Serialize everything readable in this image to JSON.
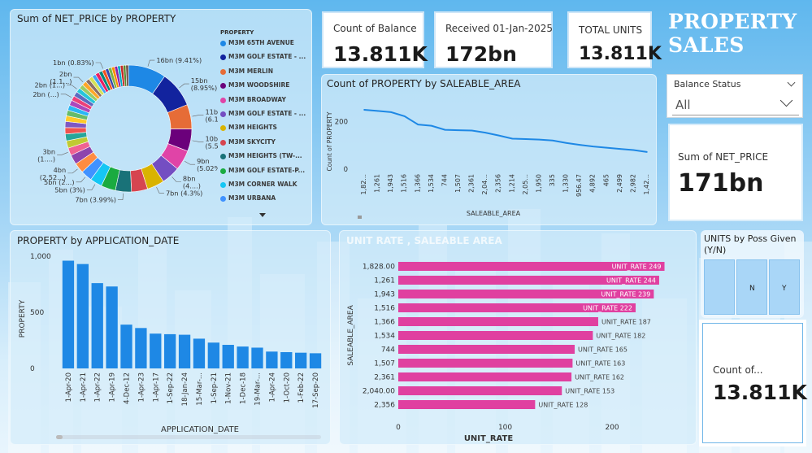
{
  "dashboard_title": "PROPERTY SALES",
  "kpi_cards": [
    {
      "label": "Count of Balance",
      "value": "13.811K"
    },
    {
      "label": "Received 01-Jan-2025",
      "value": "172bn"
    },
    {
      "label": "TOTAL UNITS",
      "value": "13.811K"
    }
  ],
  "net_price_card": {
    "label": "Sum of NET_PRICE",
    "value": "171bn"
  },
  "count_card": {
    "label": "Count of...",
    "value": "13.811K"
  },
  "slicer": {
    "title": "Balance Status",
    "selected": "All"
  },
  "poss_tiles": {
    "title": "UNITS by Poss Given (Y/N)",
    "labels": [
      "N",
      "Y"
    ]
  },
  "colors": {
    "bar_blue": "#1e88e5",
    "bar_pink": "#e040a0",
    "line_blue": "#1e88e5"
  },
  "chart_data": [
    {
      "type": "pie",
      "title": "Sum of NET_PRICE by PROPERTY",
      "legend_title": "PROPERTY",
      "legend": [
        {
          "name": "M3M 65TH AVENUE",
          "color": "#1e88e5"
        },
        {
          "name": "M3M GOLF ESTATE - ...",
          "color": "#12239e"
        },
        {
          "name": "M3M MERLIN",
          "color": "#e66c37"
        },
        {
          "name": "M3M WOODSHIRE",
          "color": "#6b007b"
        },
        {
          "name": "M3M BROADWAY",
          "color": "#e044a7"
        },
        {
          "name": "M3M GOLF ESTATE - ...",
          "color": "#744ec2"
        },
        {
          "name": "M3M HEIGHTS",
          "color": "#d9b300"
        },
        {
          "name": "M3M SKYCITY",
          "color": "#d64550"
        },
        {
          "name": "M3M HEIGHTS (TW-...",
          "color": "#197278"
        },
        {
          "name": "M3M GOLF ESTATE-P...",
          "color": "#1aab40"
        },
        {
          "name": "M3M CORNER WALK",
          "color": "#15c6f4"
        },
        {
          "name": "M3M URBANA",
          "color": "#4092ff"
        }
      ],
      "slices": [
        {
          "label": "16bn (9.41%)",
          "value": 9.41,
          "color": "#1e88e5"
        },
        {
          "label": "15bn (8.95%)",
          "value": 8.95,
          "color": "#12239e"
        },
        {
          "label": "11bn (6.1...)",
          "value": 6.1,
          "color": "#e66c37"
        },
        {
          "label": "10bn (5.5...)",
          "value": 5.5,
          "color": "#6b007b"
        },
        {
          "label": "9bn (5.02%)",
          "value": 5.02,
          "color": "#e044a7"
        },
        {
          "label": "8bn (4....)",
          "value": 4.6,
          "color": "#744ec2"
        },
        {
          "label": "7bn (4.3%)",
          "value": 4.3,
          "color": "#d9b300"
        },
        {
          "label": "",
          "value": 4.0,
          "color": "#d64550"
        },
        {
          "label": "7bn (3.99%)",
          "value": 3.99,
          "color": "#197278"
        },
        {
          "label": "",
          "value": 3.6,
          "color": "#1aab40"
        },
        {
          "label": "5bn (3%)",
          "value": 3.0,
          "color": "#15c6f4"
        },
        {
          "label": "5bn (2...)",
          "value": 2.8,
          "color": "#4092ff"
        },
        {
          "label": "4bn (2.52...)",
          "value": 2.52,
          "color": "#ff8c42"
        },
        {
          "label": "",
          "value": 2.4,
          "color": "#8e44ad"
        },
        {
          "label": "3bn (1....)",
          "value": 1.9,
          "color": "#f06292"
        },
        {
          "label": "",
          "value": 1.8,
          "color": "#c0ca33"
        },
        {
          "label": "",
          "value": 1.7,
          "color": "#26a69a"
        },
        {
          "label": "",
          "value": 1.6,
          "color": "#ef5350"
        },
        {
          "label": "",
          "value": 1.5,
          "color": "#7e57c2"
        },
        {
          "label": "",
          "value": 1.4,
          "color": "#ffca28"
        },
        {
          "label": "",
          "value": 1.4,
          "color": "#66bb6a"
        },
        {
          "label": "",
          "value": 1.3,
          "color": "#29b6f6"
        },
        {
          "label": "",
          "value": 1.3,
          "color": "#ab47bc"
        },
        {
          "label": "2bn (...)",
          "value": 1.2,
          "color": "#ec407a"
        },
        {
          "label": "",
          "value": 1.2,
          "color": "#5c6bc0"
        },
        {
          "label": "2bn (1...)",
          "value": 1.15,
          "color": "#26c6da"
        },
        {
          "label": "",
          "value": 1.1,
          "color": "#9ccc65"
        },
        {
          "label": "2bn (1.1...)",
          "value": 1.1,
          "color": "#ffa726"
        },
        {
          "label": "",
          "value": 1.0,
          "color": "#8d6e63"
        },
        {
          "label": "",
          "value": 1.0,
          "color": "#d4e157"
        },
        {
          "label": "",
          "value": 0.95,
          "color": "#42a5f5"
        },
        {
          "label": "",
          "value": 0.95,
          "color": "#e91e63"
        },
        {
          "label": "",
          "value": 0.9,
          "color": "#00897b"
        },
        {
          "label": "1bn (0.83%)",
          "value": 0.83,
          "color": "#f4511e"
        },
        {
          "label": "",
          "value": 0.8,
          "color": "#3949ab"
        },
        {
          "label": "",
          "value": 0.8,
          "color": "#7cb342"
        },
        {
          "label": "",
          "value": 0.75,
          "color": "#fb8c00"
        },
        {
          "label": "",
          "value": 0.75,
          "color": "#8e24aa"
        },
        {
          "label": "",
          "value": 0.7,
          "color": "#00acc1"
        },
        {
          "label": "",
          "value": 0.7,
          "color": "#c62828"
        },
        {
          "label": "",
          "value": 0.65,
          "color": "#558b2f"
        },
        {
          "label": "",
          "value": 0.65,
          "color": "#6d4c41"
        }
      ]
    },
    {
      "type": "line",
      "title": "Count of PROPERTY by SALEABLE_AREA",
      "xlabel": "SALEABLE_AREA",
      "ylabel": "Count of PROPERTY",
      "y_ticks": [
        0,
        200
      ],
      "ylim": [
        0,
        300
      ],
      "categories": [
        "1,82...",
        "1,261",
        "1,943",
        "1,516",
        "1,366",
        "1,534",
        "744",
        "1,507",
        "2,361",
        "2,04...",
        "2,356",
        "1,214",
        "2,05...",
        "1,950",
        "335",
        "1,330",
        "956.47",
        "4,892",
        "465",
        "2,499",
        "2,982",
        "1,42..."
      ],
      "values": [
        249,
        244,
        239,
        222,
        187,
        182,
        165,
        163,
        162,
        153,
        141,
        128,
        126,
        124,
        120,
        110,
        102,
        95,
        90,
        85,
        80,
        72
      ]
    },
    {
      "type": "bar",
      "title": "PROPERTY by APPLICATION_DATE",
      "xlabel": "APPLICATION_DATE",
      "ylabel": "PROPERTY",
      "y_ticks": [
        0,
        500,
        1000
      ],
      "y_tick_labels": [
        "0",
        "500",
        "1,000"
      ],
      "ylim": [
        0,
        1000
      ],
      "categories": [
        "1-Apr-20",
        "1-Apr-21",
        "1-Apr-22",
        "1-Apr-19",
        "4-Dec-12",
        "1-Apr-23",
        "1-Apr-17",
        "1-Sep-22",
        "18-Jan-24",
        "15-Mar-...",
        "1-Sep-21",
        "1-Nov-21",
        "1-Dec-18",
        "19-Mar-...",
        "1-Apr-24",
        "1-Oct-20",
        "1-Feb-22",
        "17-Sep-20"
      ],
      "values": [
        960,
        930,
        760,
        730,
        390,
        360,
        310,
        305,
        300,
        265,
        230,
        210,
        195,
        185,
        150,
        145,
        140,
        135
      ]
    },
    {
      "type": "bar",
      "orientation": "horizontal",
      "title": "UNIT RATE , SALEABLE AREA",
      "xlabel": "UNIT_RATE",
      "ylabel": "SALEABLE_AREA",
      "x_ticks": [
        0,
        100,
        200
      ],
      "xlim": [
        0,
        260
      ],
      "series_label": "UNIT_RATE",
      "categories": [
        "1,828.00",
        "1,261",
        "1,943",
        "1,516",
        "1,366",
        "1,534",
        "744",
        "1,507",
        "2,361",
        "2,040.00",
        "2,356"
      ],
      "values": [
        249,
        244,
        239,
        222,
        187,
        182,
        165,
        163,
        162,
        153,
        128
      ]
    }
  ]
}
